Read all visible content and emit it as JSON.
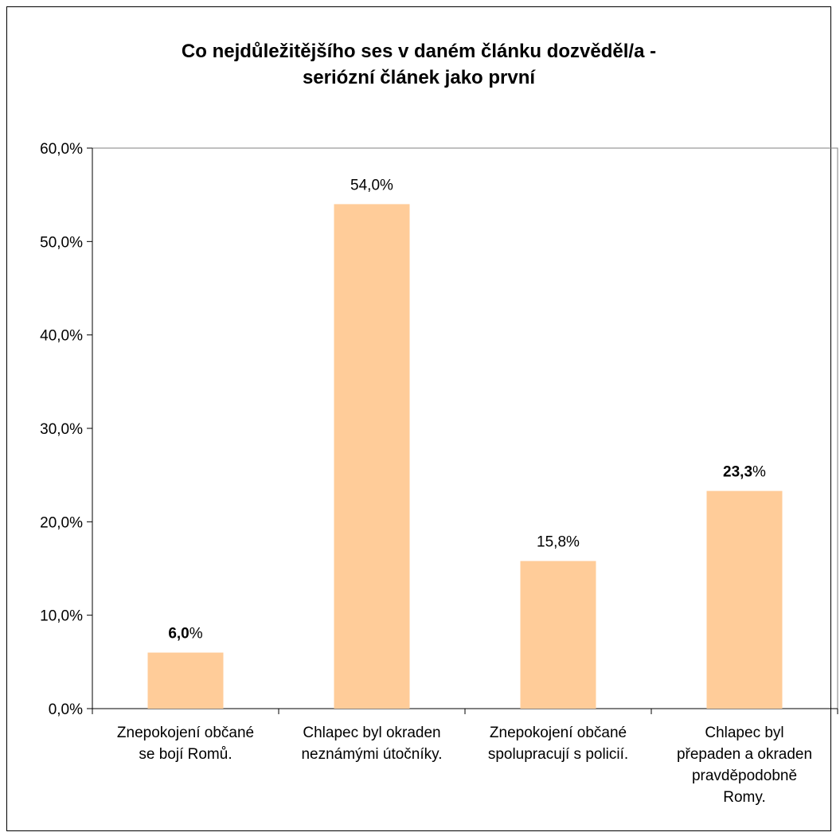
{
  "chart_data": {
    "type": "bar",
    "title_lines": [
      "Co nejdůležitějšího ses v daném článku dozvěděl/a -",
      "seriózní článek jako první"
    ],
    "categories": [
      [
        "Znepokojení občané",
        "se bojí Romů."
      ],
      [
        "Chlapec byl okraden",
        "neznámými útočníky."
      ],
      [
        "Znepokojení občané",
        "spolupracují s policií."
      ],
      [
        "Chlapec byl",
        "přepaden a okraden",
        "pravděpodobně",
        "Romy."
      ]
    ],
    "values": [
      6.0,
      54.0,
      15.8,
      23.3
    ],
    "data_labels": [
      {
        "number": "6,0",
        "suffix": "%",
        "bold_number": true
      },
      {
        "number": "54,0",
        "suffix": "%",
        "bold_number": false
      },
      {
        "number": "15,8",
        "suffix": "%",
        "bold_number": false
      },
      {
        "number": "23,3",
        "suffix": "%",
        "bold_number": true
      }
    ],
    "y_ticks": [
      "0,0%",
      "10,0%",
      "20,0%",
      "30,0%",
      "40,0%",
      "50,0%",
      "60,0%"
    ],
    "ylim": [
      0,
      60
    ],
    "bar_color": "#FFCC99",
    "grid": false,
    "legend": "none"
  }
}
